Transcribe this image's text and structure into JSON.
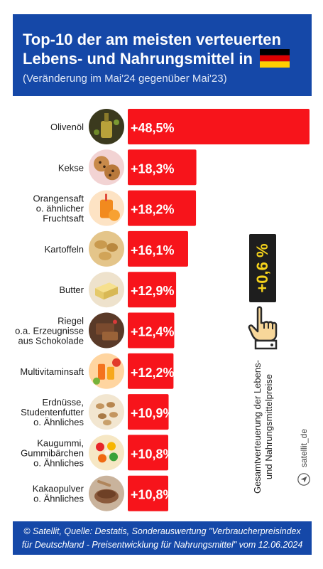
{
  "header": {
    "title": "Top-10 der am meisten verteuerten Lebens- und Nahrungsmittel in",
    "subtitle": "(Veränderung im Mai'24 gegenüber Mai'23)",
    "flag_colors": [
      "#000000",
      "#dd0000",
      "#ffce00"
    ]
  },
  "chart_data": {
    "type": "bar",
    "orientation": "horizontal",
    "categories": [
      "Olivenöl",
      "Kekse",
      "Orangensaft o. ähnlicher Fruchtsaft",
      "Kartoffeln",
      "Butter",
      "Riegel o.a. Erzeugnisse aus Schokolade",
      "Multivitaminsaft",
      "Erdnüsse, Studentenfutter o. Ähnliches",
      "Kaugummi, Gummibärchen o. Ähnliches",
      "Kakaopulver o. Ähnliches"
    ],
    "category_lines": [
      [
        "Olivenöl"
      ],
      [
        "Kekse"
      ],
      [
        "Orangensaft",
        "o. ähnlicher",
        "Fruchtsaft"
      ],
      [
        "Kartoffeln"
      ],
      [
        "Butter"
      ],
      [
        "Riegel",
        "o.a. Erzeugnisse",
        "aus Schokolade"
      ],
      [
        "Multivitaminsaft"
      ],
      [
        "Erdnüsse,",
        "Studentenfutter",
        "o. Ähnliches"
      ],
      [
        "Kaugummi,",
        "Gummibärchen",
        "o. Ähnliches"
      ],
      [
        "Kakaopulver",
        "o. Ähnliches"
      ]
    ],
    "values": [
      48.5,
      18.3,
      18.2,
      16.1,
      12.9,
      12.4,
      12.2,
      10.9,
      10.8,
      10.8
    ],
    "data_labels": [
      "+48,5%",
      "+18,3%",
      "+18,2%",
      "+16,1%",
      "+12,9%",
      "+12,4%",
      "+12,2%",
      "+10,9%",
      "+10,8%",
      "+10,8%"
    ],
    "icons": [
      "olive-oil-icon",
      "cookies-icon",
      "orange-juice-icon",
      "potatoes-icon",
      "butter-icon",
      "chocolate-bar-icon",
      "multivitamin-juice-icon",
      "peanuts-icon",
      "gummy-bears-icon",
      "cocoa-powder-icon"
    ],
    "bar_color": "#f7141b",
    "label_color": "#ffffff",
    "xlim": [
      0,
      48.5
    ]
  },
  "overall": {
    "value_label": "+0,6 %",
    "caption": "Gesamtverteuerung der Lebens- und Nahrungsmittelpreise",
    "badge_color": "#1e1e1e",
    "value_color": "#f5d31c"
  },
  "credit": "satellit_de",
  "footer": {
    "line1": "© Satellit, Quelle: Destatis, Sonderauswertung \"Verbraucherpreisindex",
    "line2": "für Deutschland - Preisentwicklung für Nahrungsmittel\" vom 12.06.2024"
  }
}
